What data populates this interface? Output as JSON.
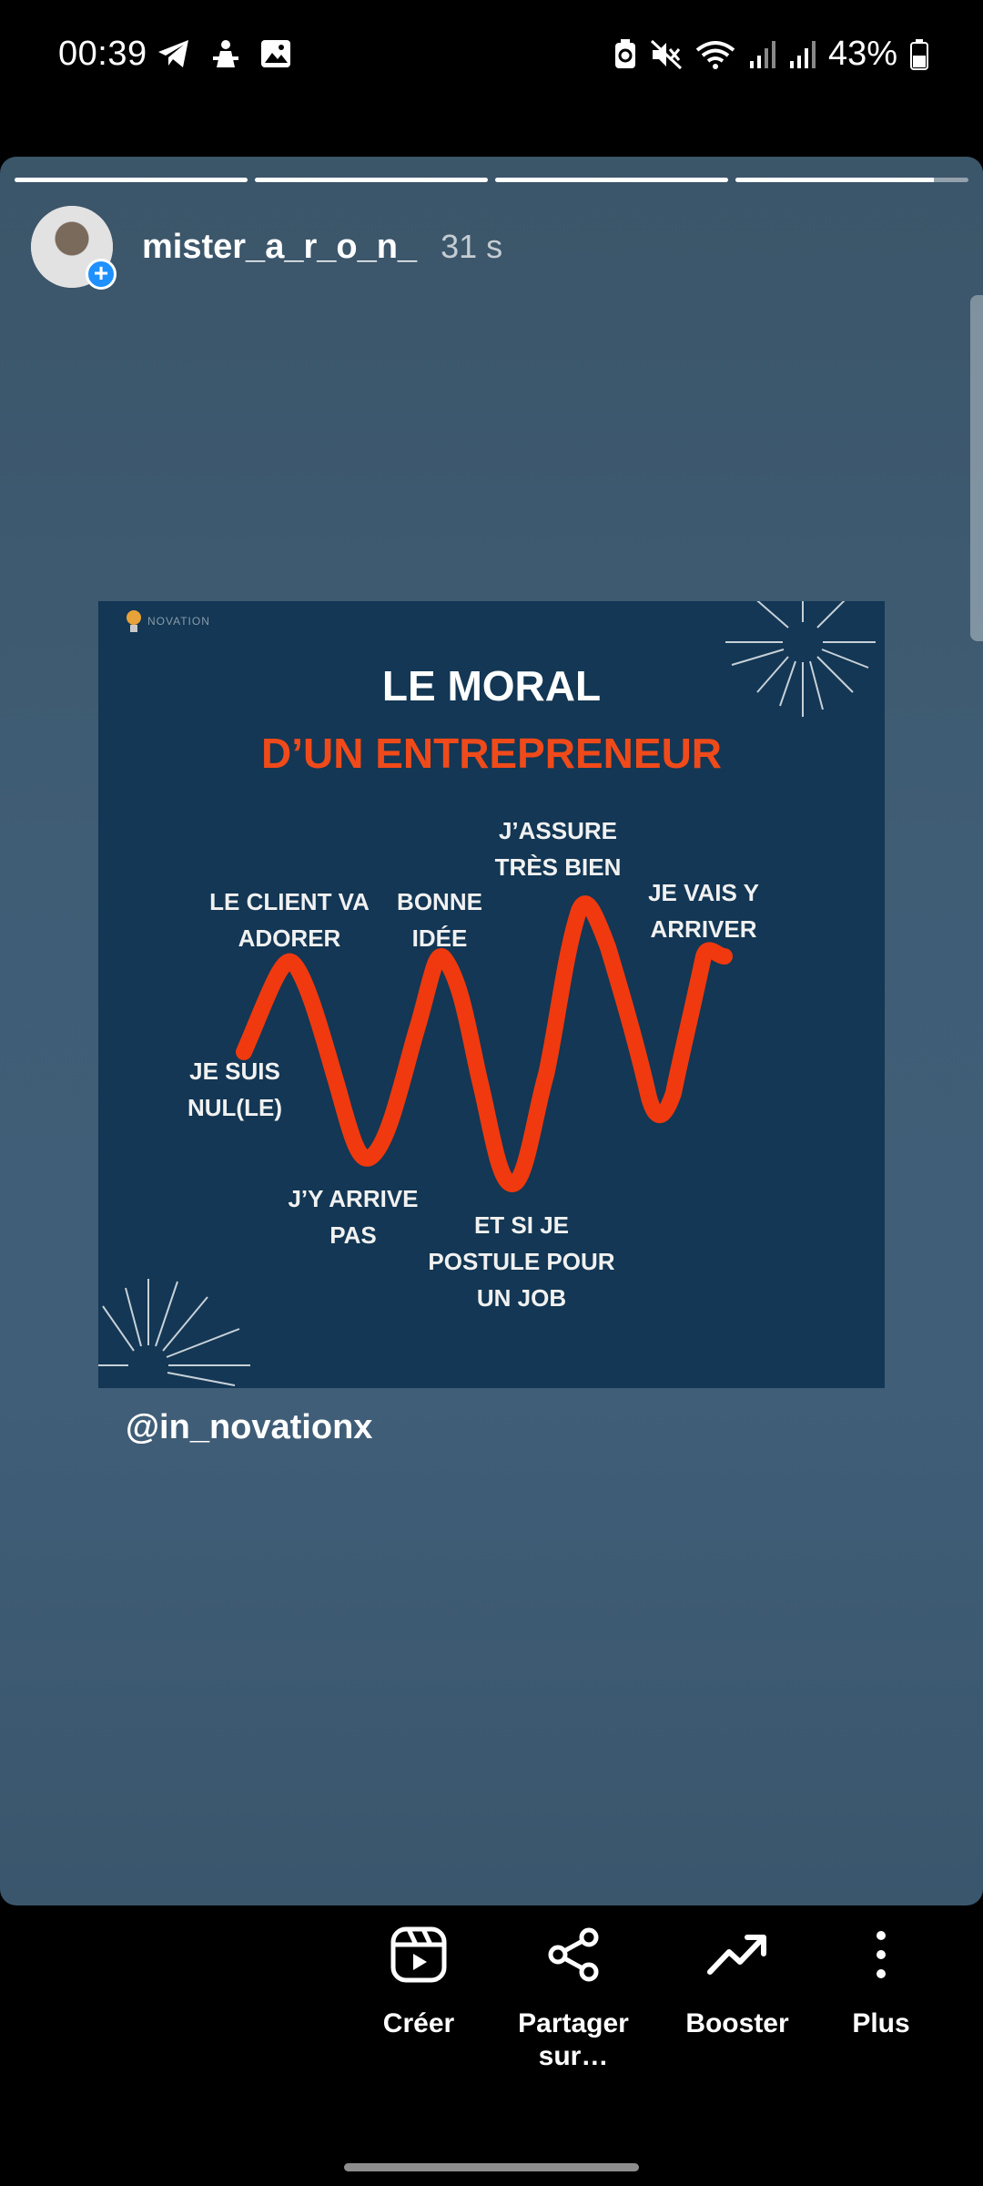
{
  "status_bar": {
    "time": "00:39",
    "battery": "43%",
    "icons": [
      "telegram-icon",
      "wellness-icon",
      "gallery-icon",
      "battery-saver-icon",
      "mute-icon",
      "wifi-icon",
      "signal-icon",
      "signal-icon",
      "battery-icon"
    ]
  },
  "story": {
    "progress_segments": [
      1,
      1,
      1,
      0.85
    ],
    "username": "mister_a_r_o_n_",
    "time_ago": "31 s",
    "mention": "@in_novationx"
  },
  "post": {
    "logo_text": "NOVATION",
    "title_line1": "LE MORAL",
    "title_line2": "D’UN ENTREPRENEUR",
    "labels": {
      "je_suis": "JE SUIS NUL(LE)",
      "client": "LE CLIENT VA ADORER",
      "jy_arrive": "J’Y ARRIVE PAS",
      "bonne": "BONNE IDÉE",
      "et_si": "ET SI JE POSTULE POUR UN JOB",
      "jassure": "J’ASSURE TRÈS BIEN",
      "je_vais": "JE VAIS Y ARRIVER"
    },
    "colors": {
      "background": "#133754",
      "accent": "#f04a1a"
    }
  },
  "actions": [
    {
      "label": "Créer",
      "icon": "reels-icon"
    },
    {
      "label": "Partager sur…",
      "icon": "share-icon"
    },
    {
      "label": "Booster",
      "icon": "trending-up-icon"
    },
    {
      "label": "Plus",
      "icon": "more-vertical-icon"
    }
  ]
}
